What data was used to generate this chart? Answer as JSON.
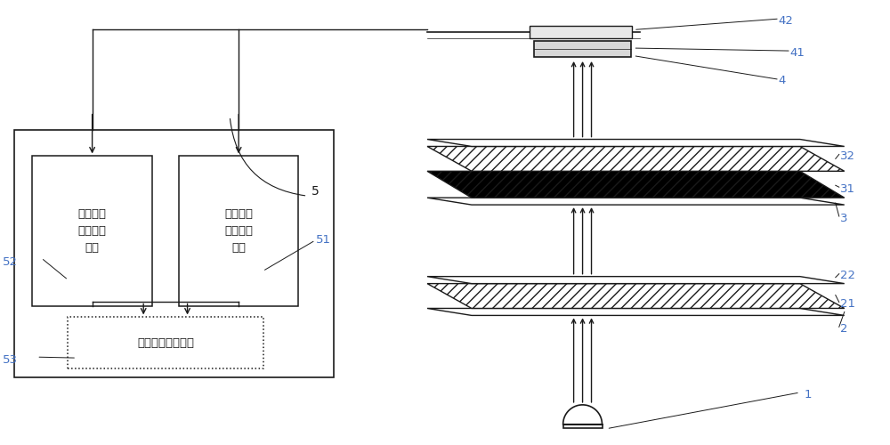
{
  "bg_color": "#ffffff",
  "line_color": "#1a1a1a",
  "label_color": "#4472c4",
  "fig_width": 10.0,
  "fig_height": 5.0,
  "box_52_text": "绝对位置\n信号处理\n单元",
  "box_51_text": "增量位置\n信号处理\n单元",
  "box_53_text": "循环校验输出单元"
}
